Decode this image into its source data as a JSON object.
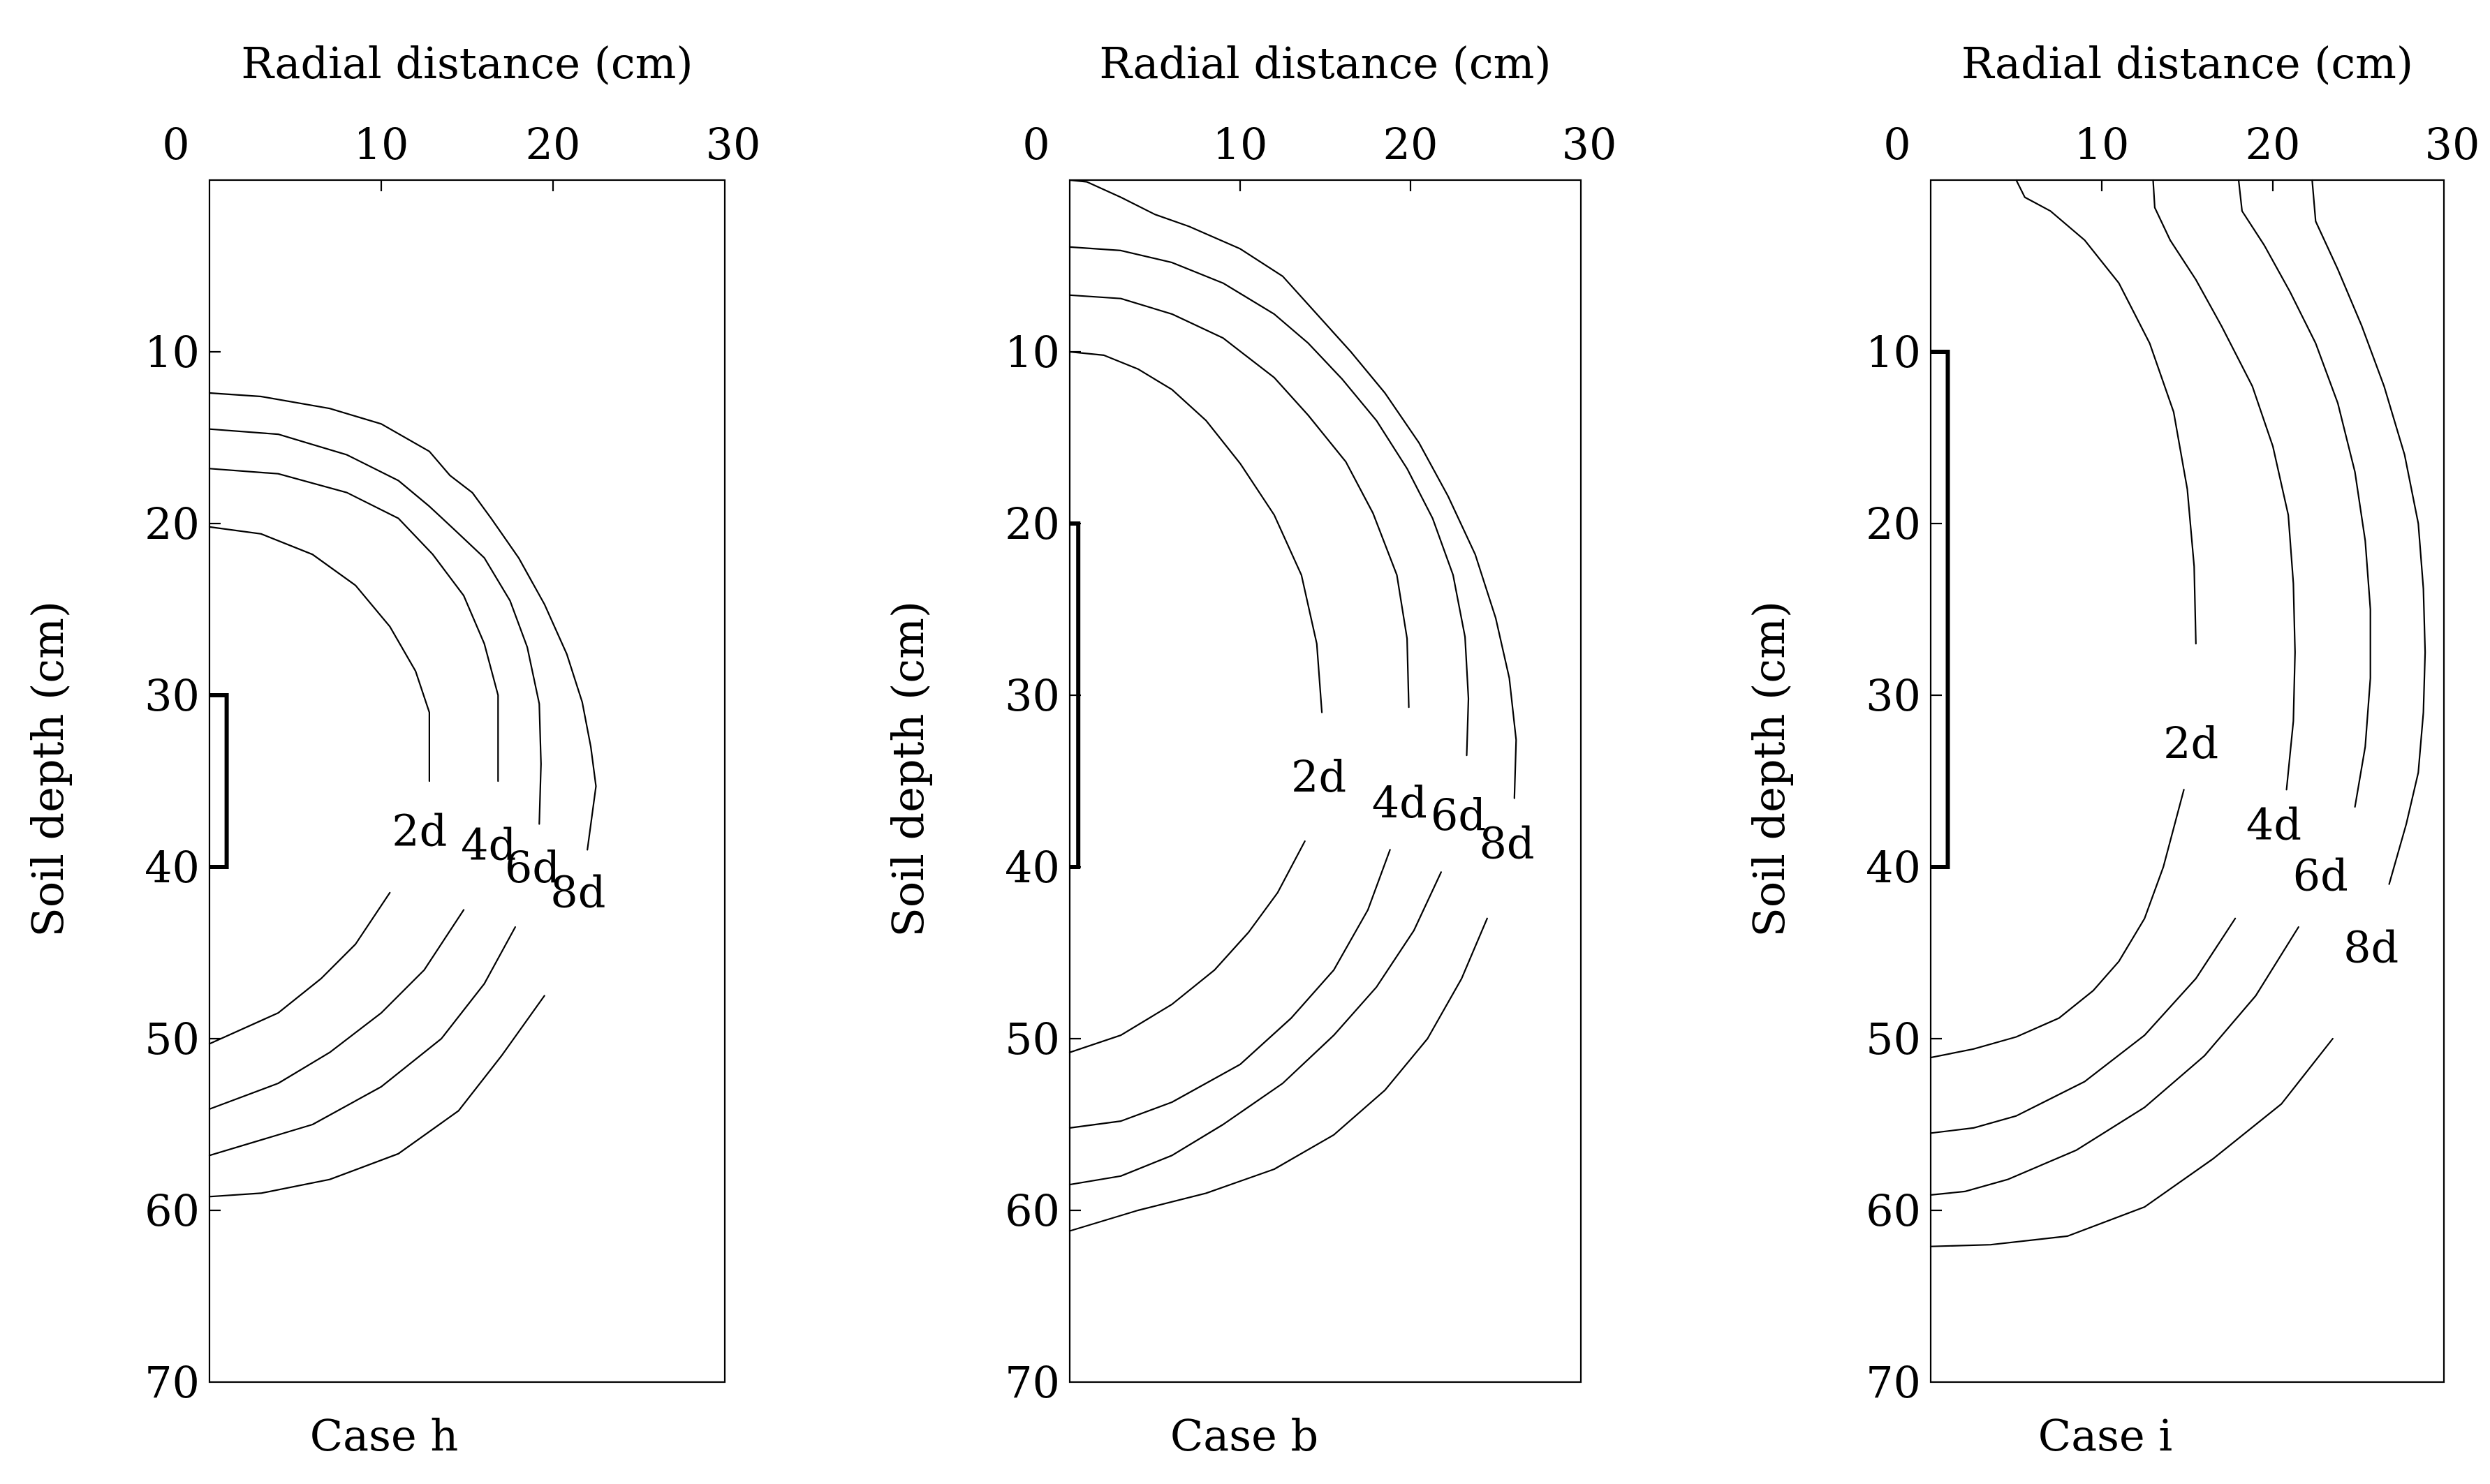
{
  "chart_data": [
    {
      "type": "line",
      "caption": "Case h",
      "xlabel": "Radial distance (cm)",
      "ylabel": "Soil depth (cm)",
      "xlim": [
        0,
        30
      ],
      "ylim": [
        70,
        0
      ],
      "x_ticks": [
        "0",
        "10",
        "20",
        "30"
      ],
      "y_ticks": [
        "10",
        "20",
        "30",
        "40",
        "50",
        "60",
        "70"
      ],
      "emitter": {
        "x": 1,
        "depth_from": 30,
        "depth_to": 40
      },
      "series": [
        {
          "name": "2d",
          "points": [
            [
              0,
              20.2
            ],
            [
              3,
              20.6
            ],
            [
              6,
              21.8
            ],
            [
              8.5,
              23.6
            ],
            [
              10.5,
              26
            ],
            [
              12,
              28.6
            ],
            [
              12.8,
              31
            ],
            [
              12.8,
              35
            ],
            [
              12.2,
              38
            ],
            [
              10.5,
              41.5
            ],
            [
              8.5,
              44.5
            ],
            [
              6.5,
              46.5
            ],
            [
              4,
              48.5
            ],
            [
              0,
              50.3
            ]
          ]
        },
        {
          "name": "4d",
          "points": [
            [
              0,
              16.8
            ],
            [
              4,
              17.1
            ],
            [
              8,
              18.2
            ],
            [
              11,
              19.7
            ],
            [
              13,
              21.8
            ],
            [
              14.8,
              24.2
            ],
            [
              16,
              27
            ],
            [
              16.8,
              30
            ],
            [
              16.8,
              35
            ],
            [
              16.2,
              39
            ],
            [
              14.8,
              42.5
            ],
            [
              12.5,
              46
            ],
            [
              10,
              48.5
            ],
            [
              7,
              50.8
            ],
            [
              4,
              52.6
            ],
            [
              0,
              54.1
            ]
          ]
        },
        {
          "name": "6d",
          "points": [
            [
              0,
              14.5
            ],
            [
              4,
              14.8
            ],
            [
              8,
              16
            ],
            [
              11,
              17.5
            ],
            [
              12.8,
              19
            ],
            [
              14.2,
              20.3
            ],
            [
              16,
              22
            ],
            [
              17.5,
              24.5
            ],
            [
              18.5,
              27.2
            ],
            [
              19.2,
              30.5
            ],
            [
              19.3,
              34
            ],
            [
              19.2,
              37.5
            ],
            [
              18.8,
              40
            ],
            [
              17.8,
              43.5
            ],
            [
              16,
              46.8
            ],
            [
              13.5,
              50
            ],
            [
              10,
              52.8
            ],
            [
              6,
              55
            ],
            [
              0,
              56.8
            ]
          ]
        },
        {
          "name": "8d",
          "points": [
            [
              0,
              12.4
            ],
            [
              3,
              12.6
            ],
            [
              7,
              13.3
            ],
            [
              10,
              14.2
            ],
            [
              12.8,
              15.8
            ],
            [
              14,
              17.2
            ],
            [
              15.3,
              18.2
            ],
            [
              16.4,
              19.7
            ],
            [
              18,
              22
            ],
            [
              19.5,
              24.7
            ],
            [
              20.8,
              27.6
            ],
            [
              21.7,
              30.4
            ],
            [
              22.2,
              33
            ],
            [
              22.5,
              35.3
            ],
            [
              22,
              39
            ],
            [
              21,
              43.5
            ],
            [
              19.5,
              47.5
            ],
            [
              17,
              51
            ],
            [
              14.5,
              54.2
            ],
            [
              11,
              56.7
            ],
            [
              7,
              58.2
            ],
            [
              3,
              59
            ],
            [
              0,
              59.2
            ]
          ]
        }
      ]
    },
    {
      "type": "line",
      "caption": "Case b",
      "xlabel": "Radial distance (cm)",
      "ylabel": "Soil depth (cm)",
      "xlim": [
        0,
        30
      ],
      "ylim": [
        70,
        0
      ],
      "x_ticks": [
        "0",
        "10",
        "20",
        "30"
      ],
      "y_ticks": [
        "10",
        "20",
        "30",
        "40",
        "50",
        "60",
        "70"
      ],
      "emitter": {
        "x": 0.5,
        "depth_from": 20,
        "depth_to": 40
      },
      "series": [
        {
          "name": "2d",
          "points": [
            [
              0,
              10
            ],
            [
              2,
              10.2
            ],
            [
              4,
              11
            ],
            [
              6,
              12.2
            ],
            [
              8,
              14
            ],
            [
              10,
              16.5
            ],
            [
              12,
              19.5
            ],
            [
              13.6,
              23
            ],
            [
              14.5,
              27
            ],
            [
              14.8,
              31
            ],
            [
              14.6,
              35
            ],
            [
              13.8,
              38.5
            ],
            [
              12.2,
              41.5
            ],
            [
              10.5,
              43.8
            ],
            [
              8.5,
              46
            ],
            [
              6,
              48
            ],
            [
              3,
              49.8
            ],
            [
              0,
              50.8
            ]
          ]
        },
        {
          "name": "4d",
          "points": [
            [
              0,
              6.7
            ],
            [
              3,
              6.9
            ],
            [
              6,
              7.8
            ],
            [
              9,
              9.2
            ],
            [
              12,
              11.5
            ],
            [
              14,
              13.7
            ],
            [
              16.2,
              16.4
            ],
            [
              17.8,
              19.4
            ],
            [
              19.2,
              23
            ],
            [
              19.8,
              26.7
            ],
            [
              19.9,
              30.7
            ],
            [
              19.6,
              35
            ],
            [
              18.8,
              39
            ],
            [
              17.5,
              42.5
            ],
            [
              15.5,
              46
            ],
            [
              13,
              48.8
            ],
            [
              10,
              51.5
            ],
            [
              6,
              53.7
            ],
            [
              3,
              54.8
            ],
            [
              0,
              55.2
            ]
          ]
        },
        {
          "name": "6d",
          "points": [
            [
              0,
              3.9
            ],
            [
              3,
              4.1
            ],
            [
              6,
              4.8
            ],
            [
              9,
              6
            ],
            [
              12,
              7.8
            ],
            [
              14,
              9.5
            ],
            [
              16,
              11.6
            ],
            [
              18,
              14
            ],
            [
              19.8,
              16.8
            ],
            [
              21.3,
              19.7
            ],
            [
              22.5,
              23
            ],
            [
              23.2,
              26.6
            ],
            [
              23.4,
              30.2
            ],
            [
              23.3,
              33.5
            ],
            [
              22.8,
              37
            ],
            [
              21.8,
              40.3
            ],
            [
              20.2,
              43.7
            ],
            [
              18,
              47
            ],
            [
              15.5,
              49.8
            ],
            [
              12.5,
              52.6
            ],
            [
              9,
              55
            ],
            [
              6,
              56.8
            ],
            [
              3,
              58
            ],
            [
              0,
              58.5
            ]
          ]
        },
        {
          "name": "8d",
          "points": [
            [
              0,
              0
            ],
            [
              1,
              0.1
            ],
            [
              3,
              1
            ],
            [
              5,
              2
            ],
            [
              7,
              2.7
            ],
            [
              10,
              4
            ],
            [
              12.5,
              5.6
            ],
            [
              14.5,
              7.8
            ],
            [
              16.5,
              10
            ],
            [
              18.5,
              12.4
            ],
            [
              20.5,
              15.3
            ],
            [
              22.2,
              18.4
            ],
            [
              23.8,
              21.8
            ],
            [
              25,
              25.5
            ],
            [
              25.8,
              29
            ],
            [
              26.2,
              32.6
            ],
            [
              26.1,
              36
            ],
            [
              25.5,
              39.5
            ],
            [
              24.5,
              43
            ],
            [
              23,
              46.5
            ],
            [
              21,
              50
            ],
            [
              18.5,
              53
            ],
            [
              15.5,
              55.6
            ],
            [
              12,
              57.6
            ],
            [
              8,
              59
            ],
            [
              4,
              60
            ],
            [
              0,
              61.2
            ]
          ]
        }
      ]
    },
    {
      "type": "line",
      "caption": "Case i",
      "xlabel": "Radial distance (cm)",
      "ylabel": "Soil depth (cm)",
      "xlim": [
        0,
        30
      ],
      "ylim": [
        70,
        0
      ],
      "x_ticks": [
        "0",
        "10",
        "20",
        "30"
      ],
      "y_ticks": [
        "10",
        "20",
        "30",
        "40",
        "50",
        "60",
        "70"
      ],
      "emitter": {
        "x": 1,
        "depth_from": 10,
        "depth_to": 40
      },
      "series": [
        {
          "name": "2d",
          "points": [
            [
              5,
              0
            ],
            [
              5.5,
              1
            ],
            [
              7,
              1.8
            ],
            [
              9,
              3.5
            ],
            [
              11,
              6
            ],
            [
              12.8,
              9.5
            ],
            [
              14.2,
              13.5
            ],
            [
              15,
              18
            ],
            [
              15.4,
              22.5
            ],
            [
              15.5,
              27
            ],
            [
              15.4,
              31.5
            ],
            [
              14.8,
              35.5
            ],
            [
              13.6,
              40
            ],
            [
              12.5,
              43
            ],
            [
              11,
              45.5
            ],
            [
              9.5,
              47.2
            ],
            [
              7.5,
              48.8
            ],
            [
              5,
              49.9
            ],
            [
              2.5,
              50.6
            ],
            [
              0,
              51.1
            ]
          ]
        },
        {
          "name": "4d",
          "points": [
            [
              13,
              0
            ],
            [
              13.1,
              1.6
            ],
            [
              14,
              3.5
            ],
            [
              15.5,
              5.8
            ],
            [
              17,
              8.5
            ],
            [
              18.8,
              12
            ],
            [
              20,
              15.5
            ],
            [
              20.9,
              19.5
            ],
            [
              21.2,
              23.5
            ],
            [
              21.3,
              27.5
            ],
            [
              21.2,
              31.5
            ],
            [
              20.8,
              35.5
            ],
            [
              19.5,
              39
            ],
            [
              17.8,
              43
            ],
            [
              15.5,
              46.5
            ],
            [
              12.5,
              49.8
            ],
            [
              9,
              52.5
            ],
            [
              5,
              54.5
            ],
            [
              2.5,
              55.2
            ],
            [
              0,
              55.5
            ]
          ]
        },
        {
          "name": "6d",
          "points": [
            [
              18,
              0
            ],
            [
              18.2,
              1.8
            ],
            [
              19.5,
              3.8
            ],
            [
              21,
              6.5
            ],
            [
              22.5,
              9.5
            ],
            [
              23.8,
              13
            ],
            [
              24.8,
              17
            ],
            [
              25.4,
              21
            ],
            [
              25.7,
              25
            ],
            [
              25.7,
              29
            ],
            [
              25.4,
              33
            ],
            [
              24.8,
              36.5
            ],
            [
              23.2,
              39.5
            ],
            [
              21.5,
              43.5
            ],
            [
              19,
              47.5
            ],
            [
              16,
              51
            ],
            [
              12.5,
              54
            ],
            [
              8.5,
              56.5
            ],
            [
              4.5,
              58.2
            ],
            [
              2,
              58.9
            ],
            [
              0,
              59.1
            ]
          ]
        },
        {
          "name": "8d",
          "points": [
            [
              22.3,
              0
            ],
            [
              22.5,
              2.4
            ],
            [
              23.8,
              5.2
            ],
            [
              25.2,
              8.5
            ],
            [
              26.5,
              12
            ],
            [
              27.7,
              16
            ],
            [
              28.5,
              20
            ],
            [
              28.8,
              23.8
            ],
            [
              28.9,
              27.5
            ],
            [
              28.8,
              31
            ],
            [
              28.5,
              34.5
            ],
            [
              27.8,
              37.5
            ],
            [
              26.8,
              41
            ],
            [
              25.5,
              45.5
            ],
            [
              23.5,
              50
            ],
            [
              20.5,
              53.8
            ],
            [
              16.5,
              57
            ],
            [
              12.5,
              59.8
            ],
            [
              8,
              61.5
            ],
            [
              3.5,
              62
            ],
            [
              0,
              62.1
            ]
          ]
        }
      ]
    }
  ]
}
